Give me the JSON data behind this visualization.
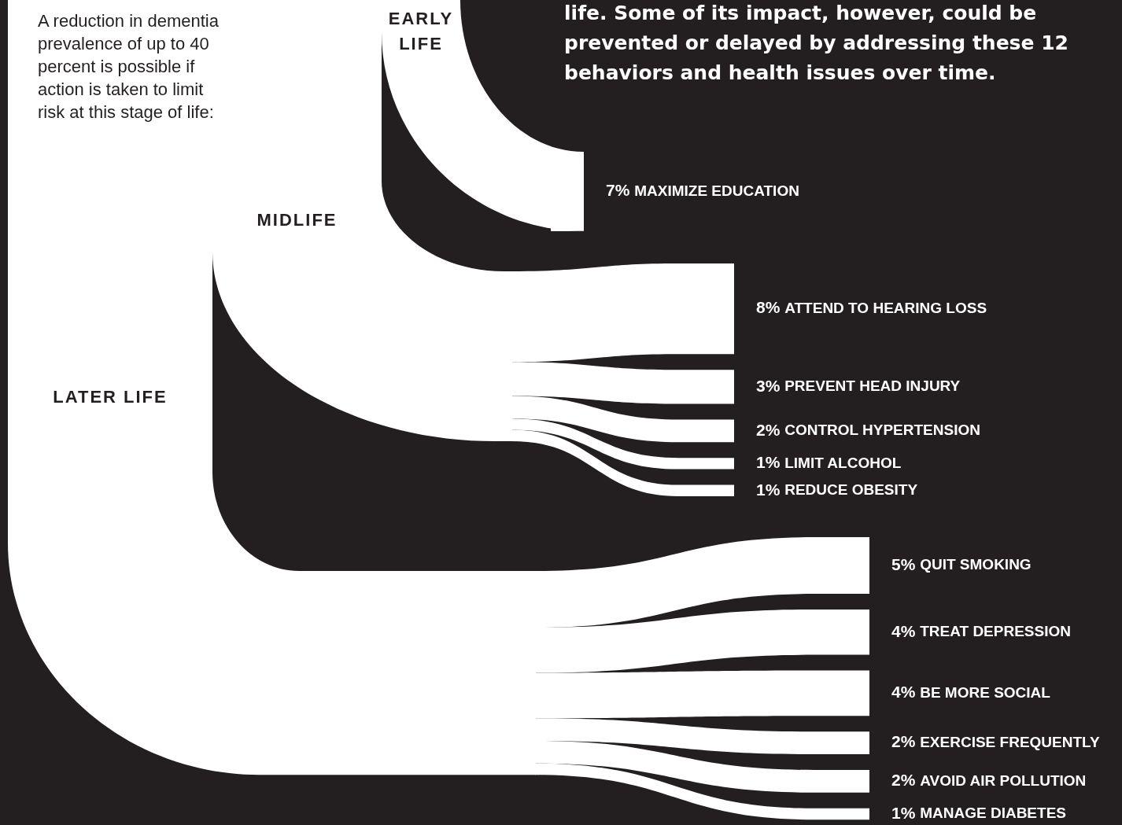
{
  "chart_data": {
    "type": "other",
    "categories": [
      "MAXIMIZE EDUCATION",
      "ATTEND TO HEARING LOSS",
      "PREVENT HEAD INJURY",
      "CONTROL HYPERTENSION",
      "LIMIT ALCOHOL",
      "REDUCE OBESITY",
      "QUIT SMOKING",
      "TREAT DEPRESSION",
      "BE MORE SOCIAL",
      "EXERCISE FREQUENTLY",
      "AVOID AIR POLLUTION",
      "MANAGE DIABETES"
    ],
    "series": [
      {
        "name": "EARLY LIFE",
        "values": [
          7,
          null,
          null,
          null,
          null,
          null,
          null,
          null,
          null,
          null,
          null,
          null
        ],
        "value_labels": [
          "7%",
          null,
          null,
          null,
          null,
          null,
          null,
          null,
          null,
          null,
          null,
          null
        ]
      },
      {
        "name": "MIDLIFE",
        "values": [
          null,
          8,
          3,
          2,
          1,
          1,
          null,
          null,
          null,
          null,
          null,
          null
        ],
        "value_labels": [
          null,
          "8%",
          "3%",
          "2%",
          "1%",
          "1%",
          null,
          null,
          null,
          null,
          null,
          null
        ]
      },
      {
        "name": "LATER LIFE",
        "values": [
          null,
          null,
          null,
          null,
          null,
          null,
          5,
          4,
          4,
          2,
          2,
          1
        ],
        "value_labels": [
          null,
          null,
          null,
          null,
          null,
          null,
          "5%",
          "4%",
          "4%",
          "2%",
          "2%",
          "1%"
        ]
      }
    ],
    "annotations": [
      "A reduction in dementia prevalence of up to 40 percent is possible if action is taken to limit risk at this stage of life:",
      "life. Some of its impact, however, could be prevented or delayed by addressing these 12 behaviors and health issues over time."
    ]
  }
}
